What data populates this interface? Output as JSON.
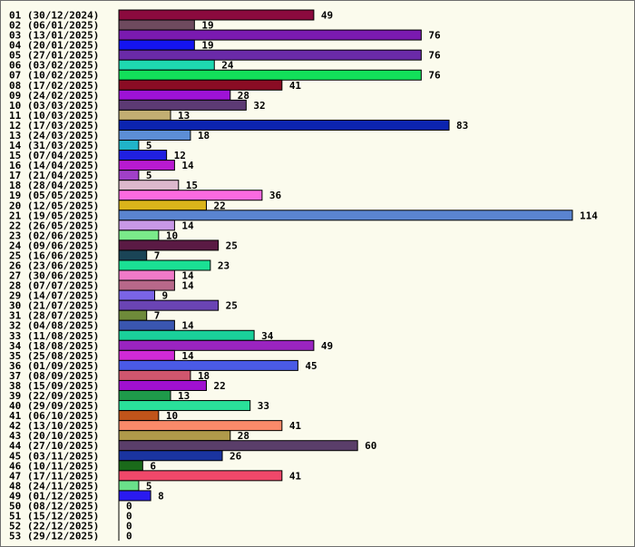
{
  "chart_data": {
    "type": "bar",
    "orientation": "horizontal",
    "title": "",
    "xlabel": "",
    "ylabel": "",
    "xlim": [
      0,
      114
    ],
    "grid": false,
    "legend": "none",
    "bars": [
      {
        "label": "01 (30/12/2024)",
        "value": 49,
        "color": "#8b0a3e"
      },
      {
        "label": "02 (06/01/2025)",
        "value": 19,
        "color": "#6e4a5e"
      },
      {
        "label": "03 (13/01/2025)",
        "value": 76,
        "color": "#7a1ab0"
      },
      {
        "label": "04 (20/01/2025)",
        "value": 19,
        "color": "#1414f0"
      },
      {
        "label": "05 (27/01/2025)",
        "value": 76,
        "color": "#6a2aa8"
      },
      {
        "label": "06 (03/02/2025)",
        "value": 24,
        "color": "#1ed9b0"
      },
      {
        "label": "07 (10/02/2025)",
        "value": 76,
        "color": "#12e05a"
      },
      {
        "label": "08 (17/02/2025)",
        "value": 41,
        "color": "#8a0c24"
      },
      {
        "label": "09 (24/02/2025)",
        "value": 28,
        "color": "#9d12d6"
      },
      {
        "label": "10 (03/03/2025)",
        "value": 32,
        "color": "#5c3a74"
      },
      {
        "label": "11 (10/03/2025)",
        "value": 13,
        "color": "#c2ae72"
      },
      {
        "label": "12 (17/03/2025)",
        "value": 83,
        "color": "#0c24b0"
      },
      {
        "label": "13 (24/03/2025)",
        "value": 18,
        "color": "#5c8ed6"
      },
      {
        "label": "14 (31/03/2025)",
        "value": 5,
        "color": "#20b4c8"
      },
      {
        "label": "15 (07/04/2025)",
        "value": 12,
        "color": "#2020e0"
      },
      {
        "label": "16 (14/04/2025)",
        "value": 14,
        "color": "#b81ad0"
      },
      {
        "label": "17 (21/04/2025)",
        "value": 5,
        "color": "#a040c8"
      },
      {
        "label": "18 (28/04/2025)",
        "value": 15,
        "color": "#dcb8cc"
      },
      {
        "label": "19 (05/05/2025)",
        "value": 36,
        "color": "#fa6ae0"
      },
      {
        "label": "20 (12/05/2025)",
        "value": 22,
        "color": "#dab41a"
      },
      {
        "label": "21 (19/05/2025)",
        "value": 114,
        "color": "#5a84d0"
      },
      {
        "label": "22 (26/05/2025)",
        "value": 14,
        "color": "#c898e6"
      },
      {
        "label": "23 (02/06/2025)",
        "value": 10,
        "color": "#7aea8a"
      },
      {
        "label": "24 (09/06/2025)",
        "value": 25,
        "color": "#5a1a44"
      },
      {
        "label": "25 (16/06/2025)",
        "value": 7,
        "color": "#1a4456"
      },
      {
        "label": "26 (23/06/2025)",
        "value": 23,
        "color": "#1ae094"
      },
      {
        "label": "27 (30/06/2025)",
        "value": 14,
        "color": "#f07ac8"
      },
      {
        "label": "28 (07/07/2025)",
        "value": 14,
        "color": "#b8688a"
      },
      {
        "label": "29 (14/07/2025)",
        "value": 9,
        "color": "#7a64e6"
      },
      {
        "label": "30 (21/07/2025)",
        "value": 25,
        "color": "#6a44b4"
      },
      {
        "label": "31 (28/07/2025)",
        "value": 7,
        "color": "#6e8a3a"
      },
      {
        "label": "32 (04/08/2025)",
        "value": 14,
        "color": "#3a56b0"
      },
      {
        "label": "33 (11/08/2025)",
        "value": 34,
        "color": "#1ad09a"
      },
      {
        "label": "34 (18/08/2025)",
        "value": 49,
        "color": "#9a24c0"
      },
      {
        "label": "35 (25/08/2025)",
        "value": 14,
        "color": "#d02ad6"
      },
      {
        "label": "36 (01/09/2025)",
        "value": 45,
        "color": "#4a5ae6"
      },
      {
        "label": "37 (08/09/2025)",
        "value": 18,
        "color": "#d0566e"
      },
      {
        "label": "38 (15/09/2025)",
        "value": 22,
        "color": "#a010d0"
      },
      {
        "label": "39 (22/09/2025)",
        "value": 13,
        "color": "#1e9a4a"
      },
      {
        "label": "40 (29/09/2025)",
        "value": 33,
        "color": "#2ae09a"
      },
      {
        "label": "41 (06/10/2025)",
        "value": 10,
        "color": "#c0541a"
      },
      {
        "label": "42 (13/10/2025)",
        "value": 41,
        "color": "#fa8a6a"
      },
      {
        "label": "43 (20/10/2025)",
        "value": 28,
        "color": "#b09a4a"
      },
      {
        "label": "44 (27/10/2025)",
        "value": 60,
        "color": "#5a3e6a"
      },
      {
        "label": "45 (03/11/2025)",
        "value": 26,
        "color": "#1a34a0"
      },
      {
        "label": "46 (10/11/2025)",
        "value": 6,
        "color": "#1a6a1a"
      },
      {
        "label": "47 (17/11/2025)",
        "value": 41,
        "color": "#f0486a"
      },
      {
        "label": "48 (24/11/2025)",
        "value": 5,
        "color": "#6ae08a"
      },
      {
        "label": "49 (01/12/2025)",
        "value": 8,
        "color": "#2a1af0"
      },
      {
        "label": "50 (08/12/2025)",
        "value": 0,
        "color": "#8a8a8a"
      },
      {
        "label": "51 (15/12/2025)",
        "value": 0,
        "color": "#8a8a8a"
      },
      {
        "label": "52 (22/12/2025)",
        "value": 0,
        "color": "#8a8a8a"
      },
      {
        "label": "53 (29/12/2025)",
        "value": 0,
        "color": "#8a8a8a"
      }
    ]
  }
}
